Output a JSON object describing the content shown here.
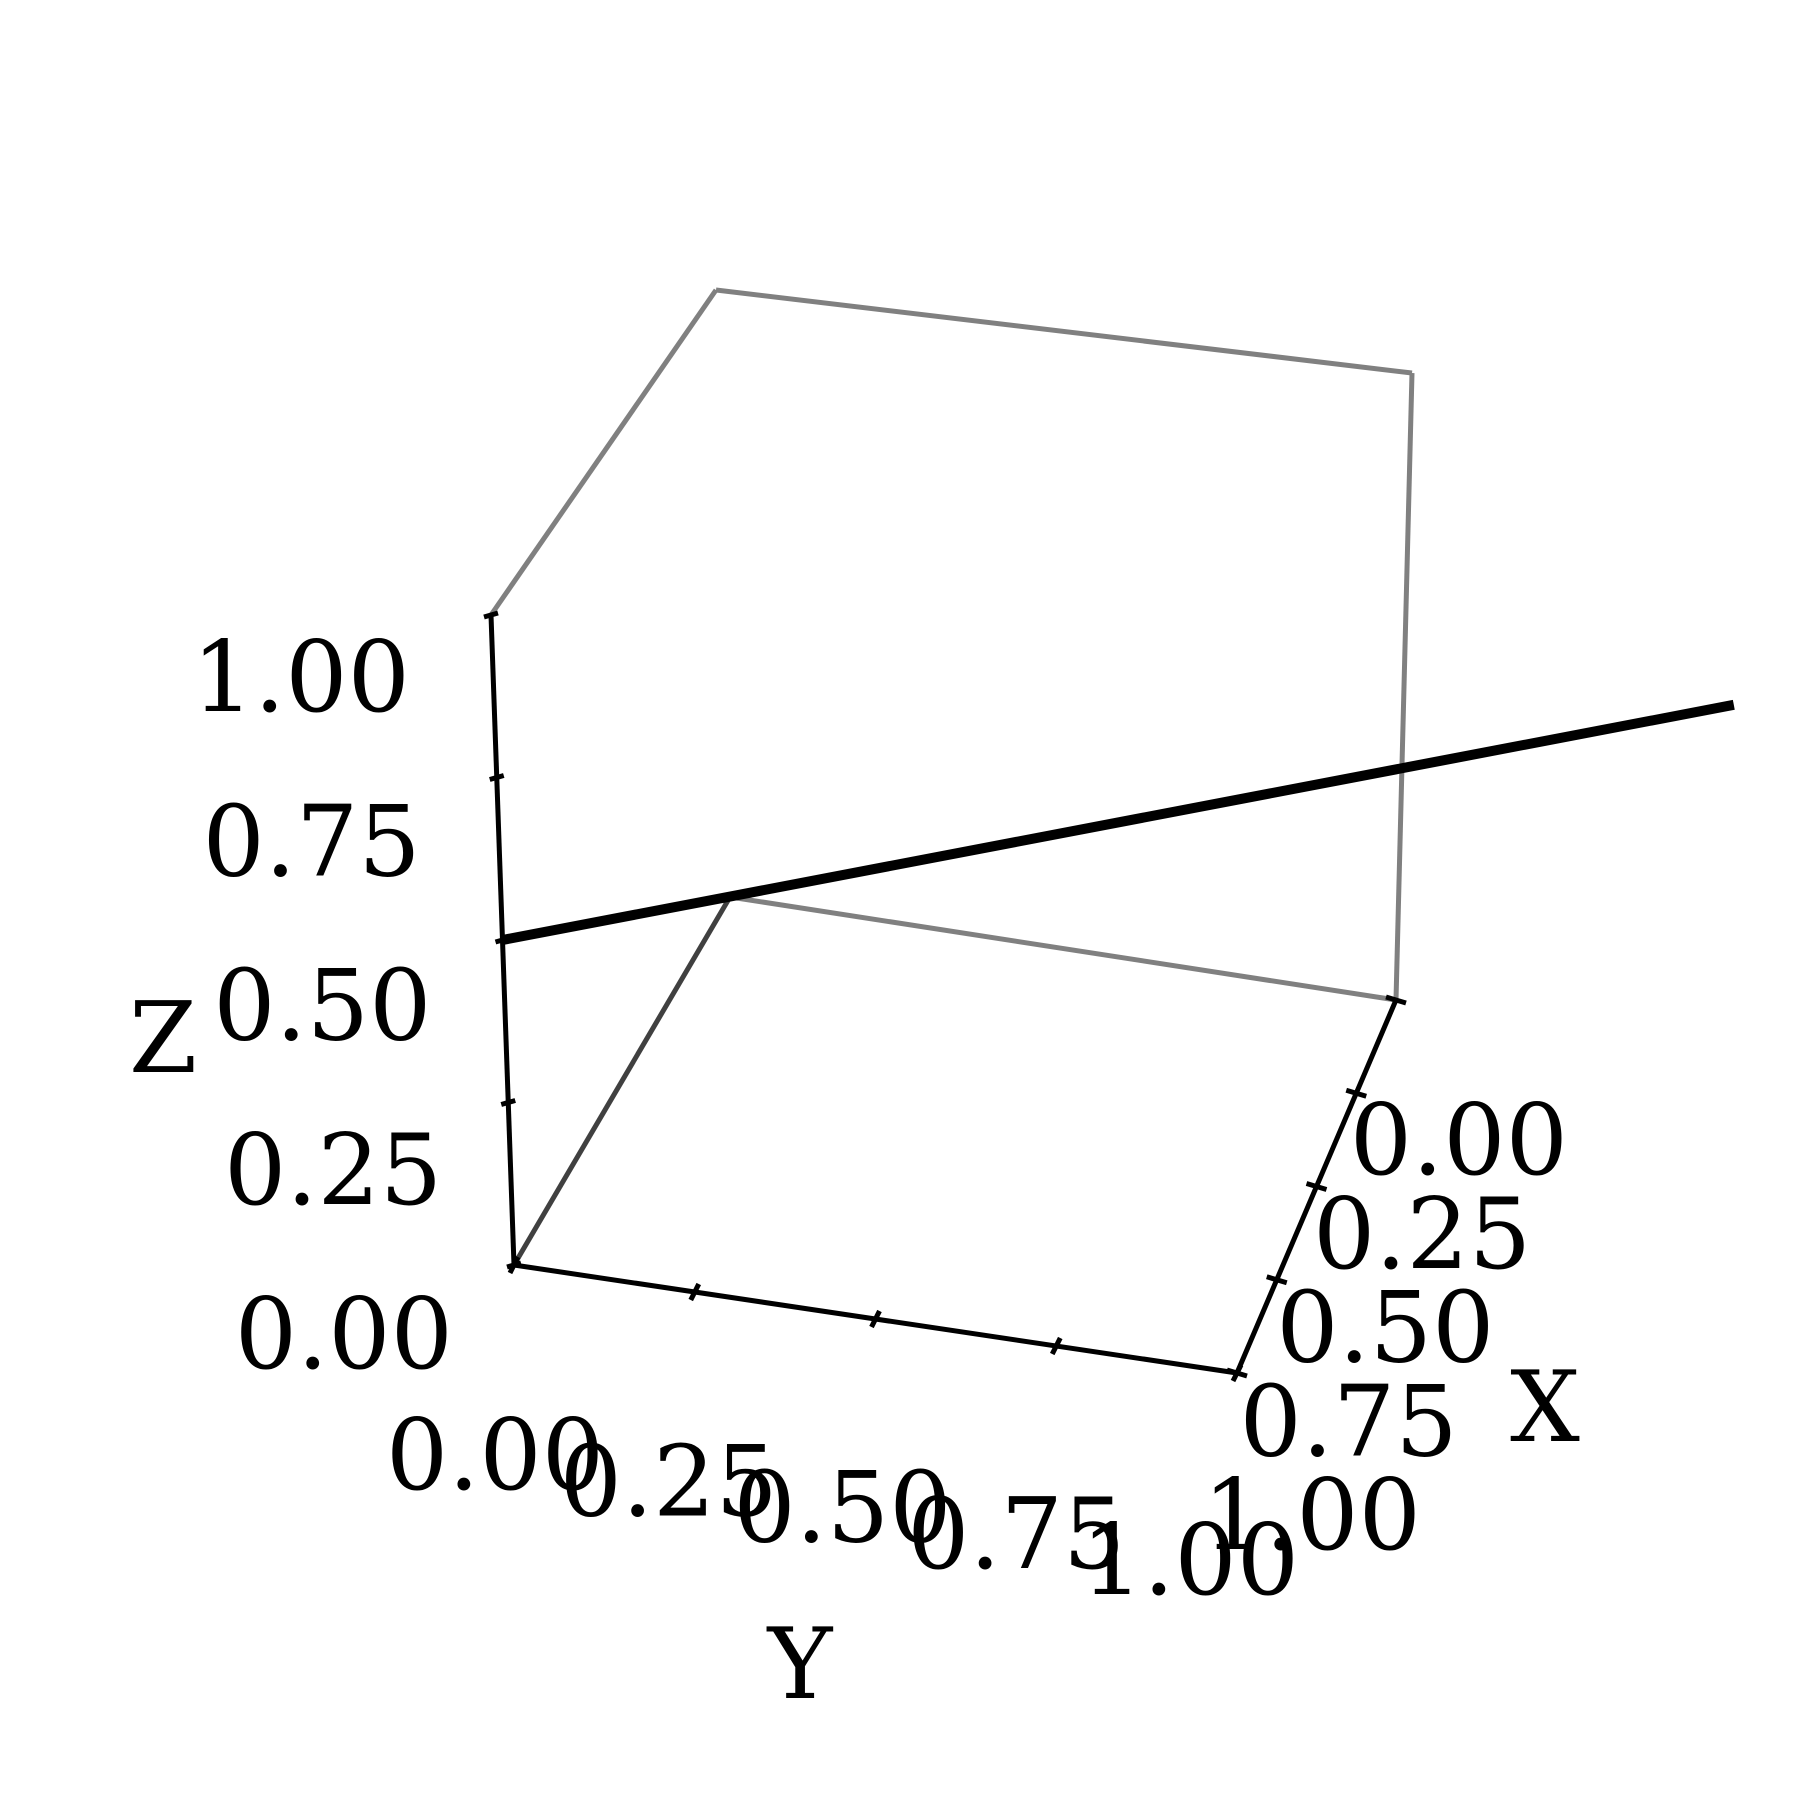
{
  "chart_data": {
    "type": "line",
    "projection": "3d",
    "title": "",
    "xlabel": "X",
    "ylabel": "Y",
    "zlabel": "Z",
    "xlim": [
      0,
      1
    ],
    "ylim": [
      0,
      1
    ],
    "zlim": [
      0,
      1
    ],
    "grid": false,
    "x_ticks": [
      "0.00",
      "0.25",
      "0.50",
      "0.75",
      "1.00"
    ],
    "y_ticks": [
      "0.00",
      "0.25",
      "0.50",
      "0.75",
      "1.00"
    ],
    "z_ticks": [
      "0.00",
      "0.25",
      "0.50",
      "0.75",
      "1.00"
    ],
    "series": [
      {
        "color": "#000000",
        "points": [
          {
            "x": 0,
            "y": 0,
            "z": 0.5
          },
          {
            "x": 0.6,
            "y": 0.98,
            "z": 0.78
          }
        ]
      }
    ],
    "colors": {
      "axis": "#000000",
      "box_back": "#808080",
      "box_floor": "#404040",
      "background": "#ffffff"
    }
  }
}
